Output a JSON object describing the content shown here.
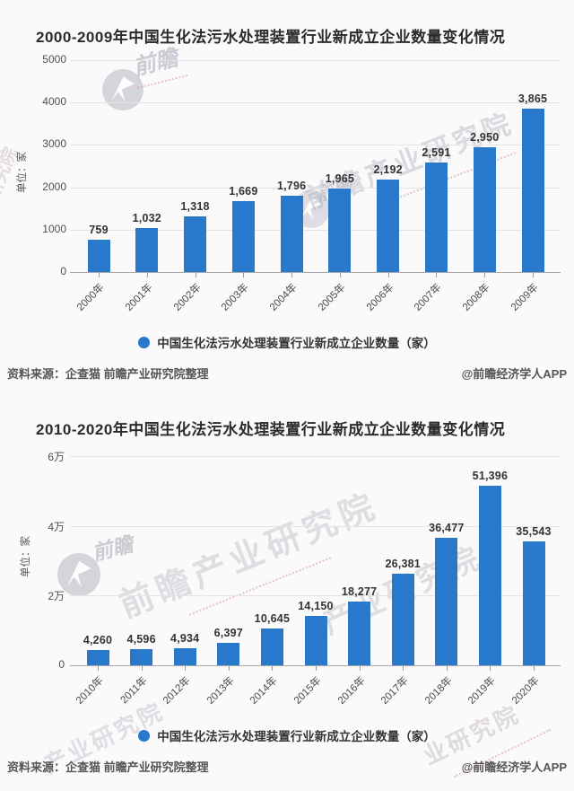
{
  "colors": {
    "bar": "#2878cb",
    "grid": "#e4e4e6",
    "axis": "#a8a8a8",
    "title_text": "#2b2b2b",
    "value_label_text": "#333333",
    "tick_text": "#4f4f4f",
    "footer_text": "#555555"
  },
  "watermark": {
    "brand": "前瞻",
    "name": "前瞻产业研究院",
    "partial_a": "产业研究院",
    "partial_b": "业研究院",
    "partial_c": "研究院"
  },
  "chart_data": [
    {
      "type": "bar",
      "title": "2000-2009年中国生化法污水处理装置行业新成立企业数量变化情况",
      "ylabel": "单位：家",
      "xlabel": "",
      "categories": [
        "2000年",
        "2001年",
        "2002年",
        "2003年",
        "2004年",
        "2005年",
        "2006年",
        "2007年",
        "2008年",
        "2009年"
      ],
      "values": [
        759,
        1032,
        1318,
        1669,
        1796,
        1965,
        2192,
        2591,
        2950,
        3865
      ],
      "value_labels": [
        "759",
        "1,032",
        "1,318",
        "1,669",
        "1,796",
        "1,965",
        "2,192",
        "2,591",
        "2,950",
        "3,865"
      ],
      "ylim": [
        0,
        5000
      ],
      "yticks": [
        {
          "value": 5000,
          "label": "5000"
        },
        {
          "value": 4000,
          "label": "4000"
        },
        {
          "value": 3000,
          "label": "3000"
        },
        {
          "value": 2000,
          "label": "2000"
        },
        {
          "value": 1000,
          "label": "1000"
        },
        {
          "value": 0,
          "label": "0"
        }
      ],
      "grid": true,
      "legend": "中国生化法污水处理装置行业新成立企业数量（家）",
      "legend_position": "bottom",
      "source": "资料来源：企查猫 前瞻产业研究院整理",
      "credit": "@前瞻经济学人APP"
    },
    {
      "type": "bar",
      "title": "2010-2020年中国生化法污水处理装置行业新成立企业数量变化情况",
      "ylabel": "单位：家",
      "xlabel": "",
      "categories": [
        "2010年",
        "2011年",
        "2012年",
        "2013年",
        "2014年",
        "2015年",
        "2016年",
        "2017年",
        "2018年",
        "2019年",
        "2020年"
      ],
      "values": [
        4260,
        4596,
        4934,
        6397,
        10645,
        14150,
        18277,
        26381,
        36477,
        51396,
        35543
      ],
      "value_labels": [
        "4,260",
        "4,596",
        "4,934",
        "6,397",
        "10,645",
        "14,150",
        "18,277",
        "26,381",
        "36,477",
        "51,396",
        "35,543"
      ],
      "ylim": [
        0,
        60000
      ],
      "yticks": [
        {
          "value": 60000,
          "label": "6万"
        },
        {
          "value": 40000,
          "label": "4万"
        },
        {
          "value": 20000,
          "label": "2万"
        },
        {
          "value": 0,
          "label": "0"
        }
      ],
      "grid": true,
      "legend": "中国生化法污水处理装置行业新成立企业数量（家）",
      "legend_position": "bottom",
      "source": "资料来源：企查猫 前瞻产业研究院整理",
      "credit": "@前瞻经济学人APP"
    }
  ]
}
